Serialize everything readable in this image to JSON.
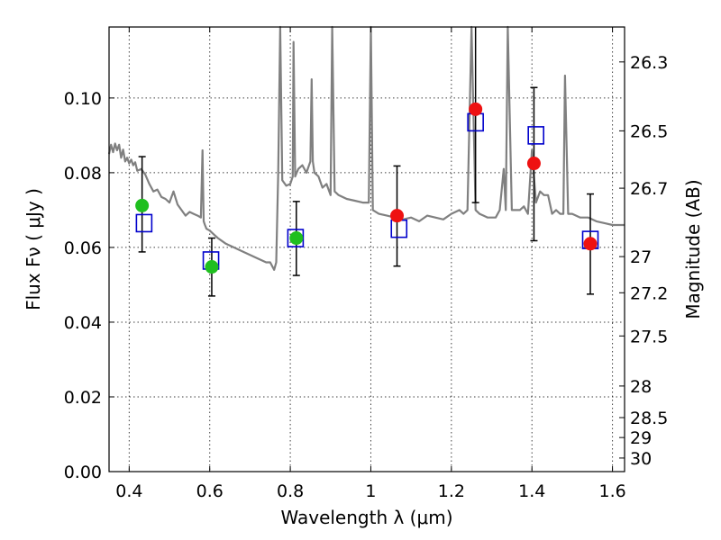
{
  "chart_data": {
    "type": "scatter",
    "title": "",
    "xlabel": "Wavelength  λ (μm)",
    "ylabel": "Flux  Fν  ( μJy )",
    "y2label": "Magnitude (AB)",
    "xlim": [
      0.35,
      1.63
    ],
    "ylim": [
      0.0,
      0.119
    ],
    "grid": true,
    "x_ticks": [
      0.4,
      0.6,
      0.8,
      1.0,
      1.2,
      1.4,
      1.6
    ],
    "x_tick_labels": [
      "0.4",
      "0.6",
      "0.8",
      "1",
      "1.2",
      "1.4",
      "1.6"
    ],
    "y_ticks": [
      0.0,
      0.02,
      0.04,
      0.06,
      0.08,
      0.1
    ],
    "y_tick_labels": [
      "0.00",
      "0.02",
      "0.04",
      "0.06",
      "0.08",
      "0.10"
    ],
    "y2_ticks": [
      "26.3",
      "26.5",
      "26.7",
      "27",
      "27.2",
      "27.5",
      "28",
      "28.5",
      "29",
      "30"
    ],
    "series": [
      {
        "name": "",
        "kind": "model_spectrum",
        "color": "#808080",
        "x": [
          0.35,
          0.355,
          0.36,
          0.365,
          0.37,
          0.375,
          0.38,
          0.385,
          0.39,
          0.395,
          0.4,
          0.405,
          0.41,
          0.415,
          0.42,
          0.43,
          0.44,
          0.45,
          0.46,
          0.47,
          0.48,
          0.49,
          0.5,
          0.51,
          0.52,
          0.53,
          0.54,
          0.55,
          0.56,
          0.57,
          0.578,
          0.582,
          0.585,
          0.588,
          0.592,
          0.6,
          0.61,
          0.62,
          0.64,
          0.66,
          0.68,
          0.7,
          0.72,
          0.74,
          0.75,
          0.76,
          0.765,
          0.77,
          0.775,
          0.78,
          0.79,
          0.8,
          0.806,
          0.808,
          0.812,
          0.816,
          0.82,
          0.83,
          0.84,
          0.85,
          0.853,
          0.856,
          0.86,
          0.87,
          0.88,
          0.89,
          0.9,
          0.904,
          0.91,
          0.92,
          0.94,
          0.96,
          0.98,
          0.995,
          1.0,
          1.005,
          1.02,
          1.04,
          1.06,
          1.08,
          1.1,
          1.12,
          1.14,
          1.16,
          1.18,
          1.2,
          1.22,
          1.23,
          1.24,
          1.25,
          1.26,
          1.27,
          1.28,
          1.29,
          1.3,
          1.31,
          1.32,
          1.33,
          1.335,
          1.34,
          1.35,
          1.36,
          1.37,
          1.38,
          1.39,
          1.4,
          1.41,
          1.42,
          1.43,
          1.44,
          1.45,
          1.46,
          1.47,
          1.478,
          1.482,
          1.49,
          1.5,
          1.52,
          1.54,
          1.56,
          1.58,
          1.6,
          1.63
        ],
        "y": [
          0.085,
          0.0875,
          0.0855,
          0.0878,
          0.086,
          0.0875,
          0.084,
          0.0862,
          0.083,
          0.084,
          0.0825,
          0.0835,
          0.082,
          0.0828,
          0.0805,
          0.081,
          0.0795,
          0.077,
          0.075,
          0.0755,
          0.0735,
          0.073,
          0.072,
          0.075,
          0.0715,
          0.07,
          0.0685,
          0.0695,
          0.069,
          0.0685,
          0.068,
          0.086,
          0.067,
          0.066,
          0.065,
          0.0645,
          0.0635,
          0.0625,
          0.061,
          0.06,
          0.059,
          0.058,
          0.057,
          0.056,
          0.056,
          0.054,
          0.056,
          0.08,
          0.119,
          0.078,
          0.0765,
          0.077,
          0.079,
          0.115,
          0.079,
          0.08,
          0.081,
          0.082,
          0.08,
          0.083,
          0.105,
          0.083,
          0.08,
          0.079,
          0.076,
          0.077,
          0.074,
          0.119,
          0.075,
          0.074,
          0.073,
          0.0725,
          0.072,
          0.072,
          0.119,
          0.07,
          0.069,
          0.0685,
          0.068,
          0.0675,
          0.068,
          0.067,
          0.0685,
          0.068,
          0.0675,
          0.069,
          0.07,
          0.069,
          0.07,
          0.119,
          0.07,
          0.069,
          0.0685,
          0.068,
          0.068,
          0.068,
          0.07,
          0.081,
          0.07,
          0.119,
          0.07,
          0.07,
          0.07,
          0.071,
          0.069,
          0.086,
          0.072,
          0.075,
          0.074,
          0.074,
          0.069,
          0.07,
          0.069,
          0.069,
          0.106,
          0.069,
          0.069,
          0.068,
          0.068,
          0.067,
          0.0665,
          0.066,
          0.066
        ]
      },
      {
        "name": "",
        "kind": "observed_green",
        "color": "#1fbf1f",
        "x": [
          0.432,
          0.605,
          0.815
        ],
        "y": [
          0.0712,
          0.0548,
          0.0625
        ],
        "err_low": [
          0.0588,
          0.047,
          0.0525
        ],
        "err_high": [
          0.0843,
          0.0625,
          0.0723
        ]
      },
      {
        "name": "",
        "kind": "observed_red",
        "color": "#ee1111",
        "x": [
          1.065,
          1.26,
          1.405,
          1.545
        ],
        "y": [
          0.0685,
          0.097,
          0.0825,
          0.061
        ],
        "err_low": [
          0.055,
          0.072,
          0.0618,
          0.0475
        ],
        "err_high": [
          0.0818,
          0.119,
          0.1028,
          0.0743
        ]
      },
      {
        "name": "",
        "kind": "model_photometry",
        "color": "#0000cc",
        "x": [
          0.437,
          0.603,
          0.813,
          1.07,
          1.26,
          1.41,
          1.545
        ],
        "y": [
          0.0665,
          0.0565,
          0.0625,
          0.065,
          0.0935,
          0.09,
          0.062
        ]
      }
    ]
  }
}
